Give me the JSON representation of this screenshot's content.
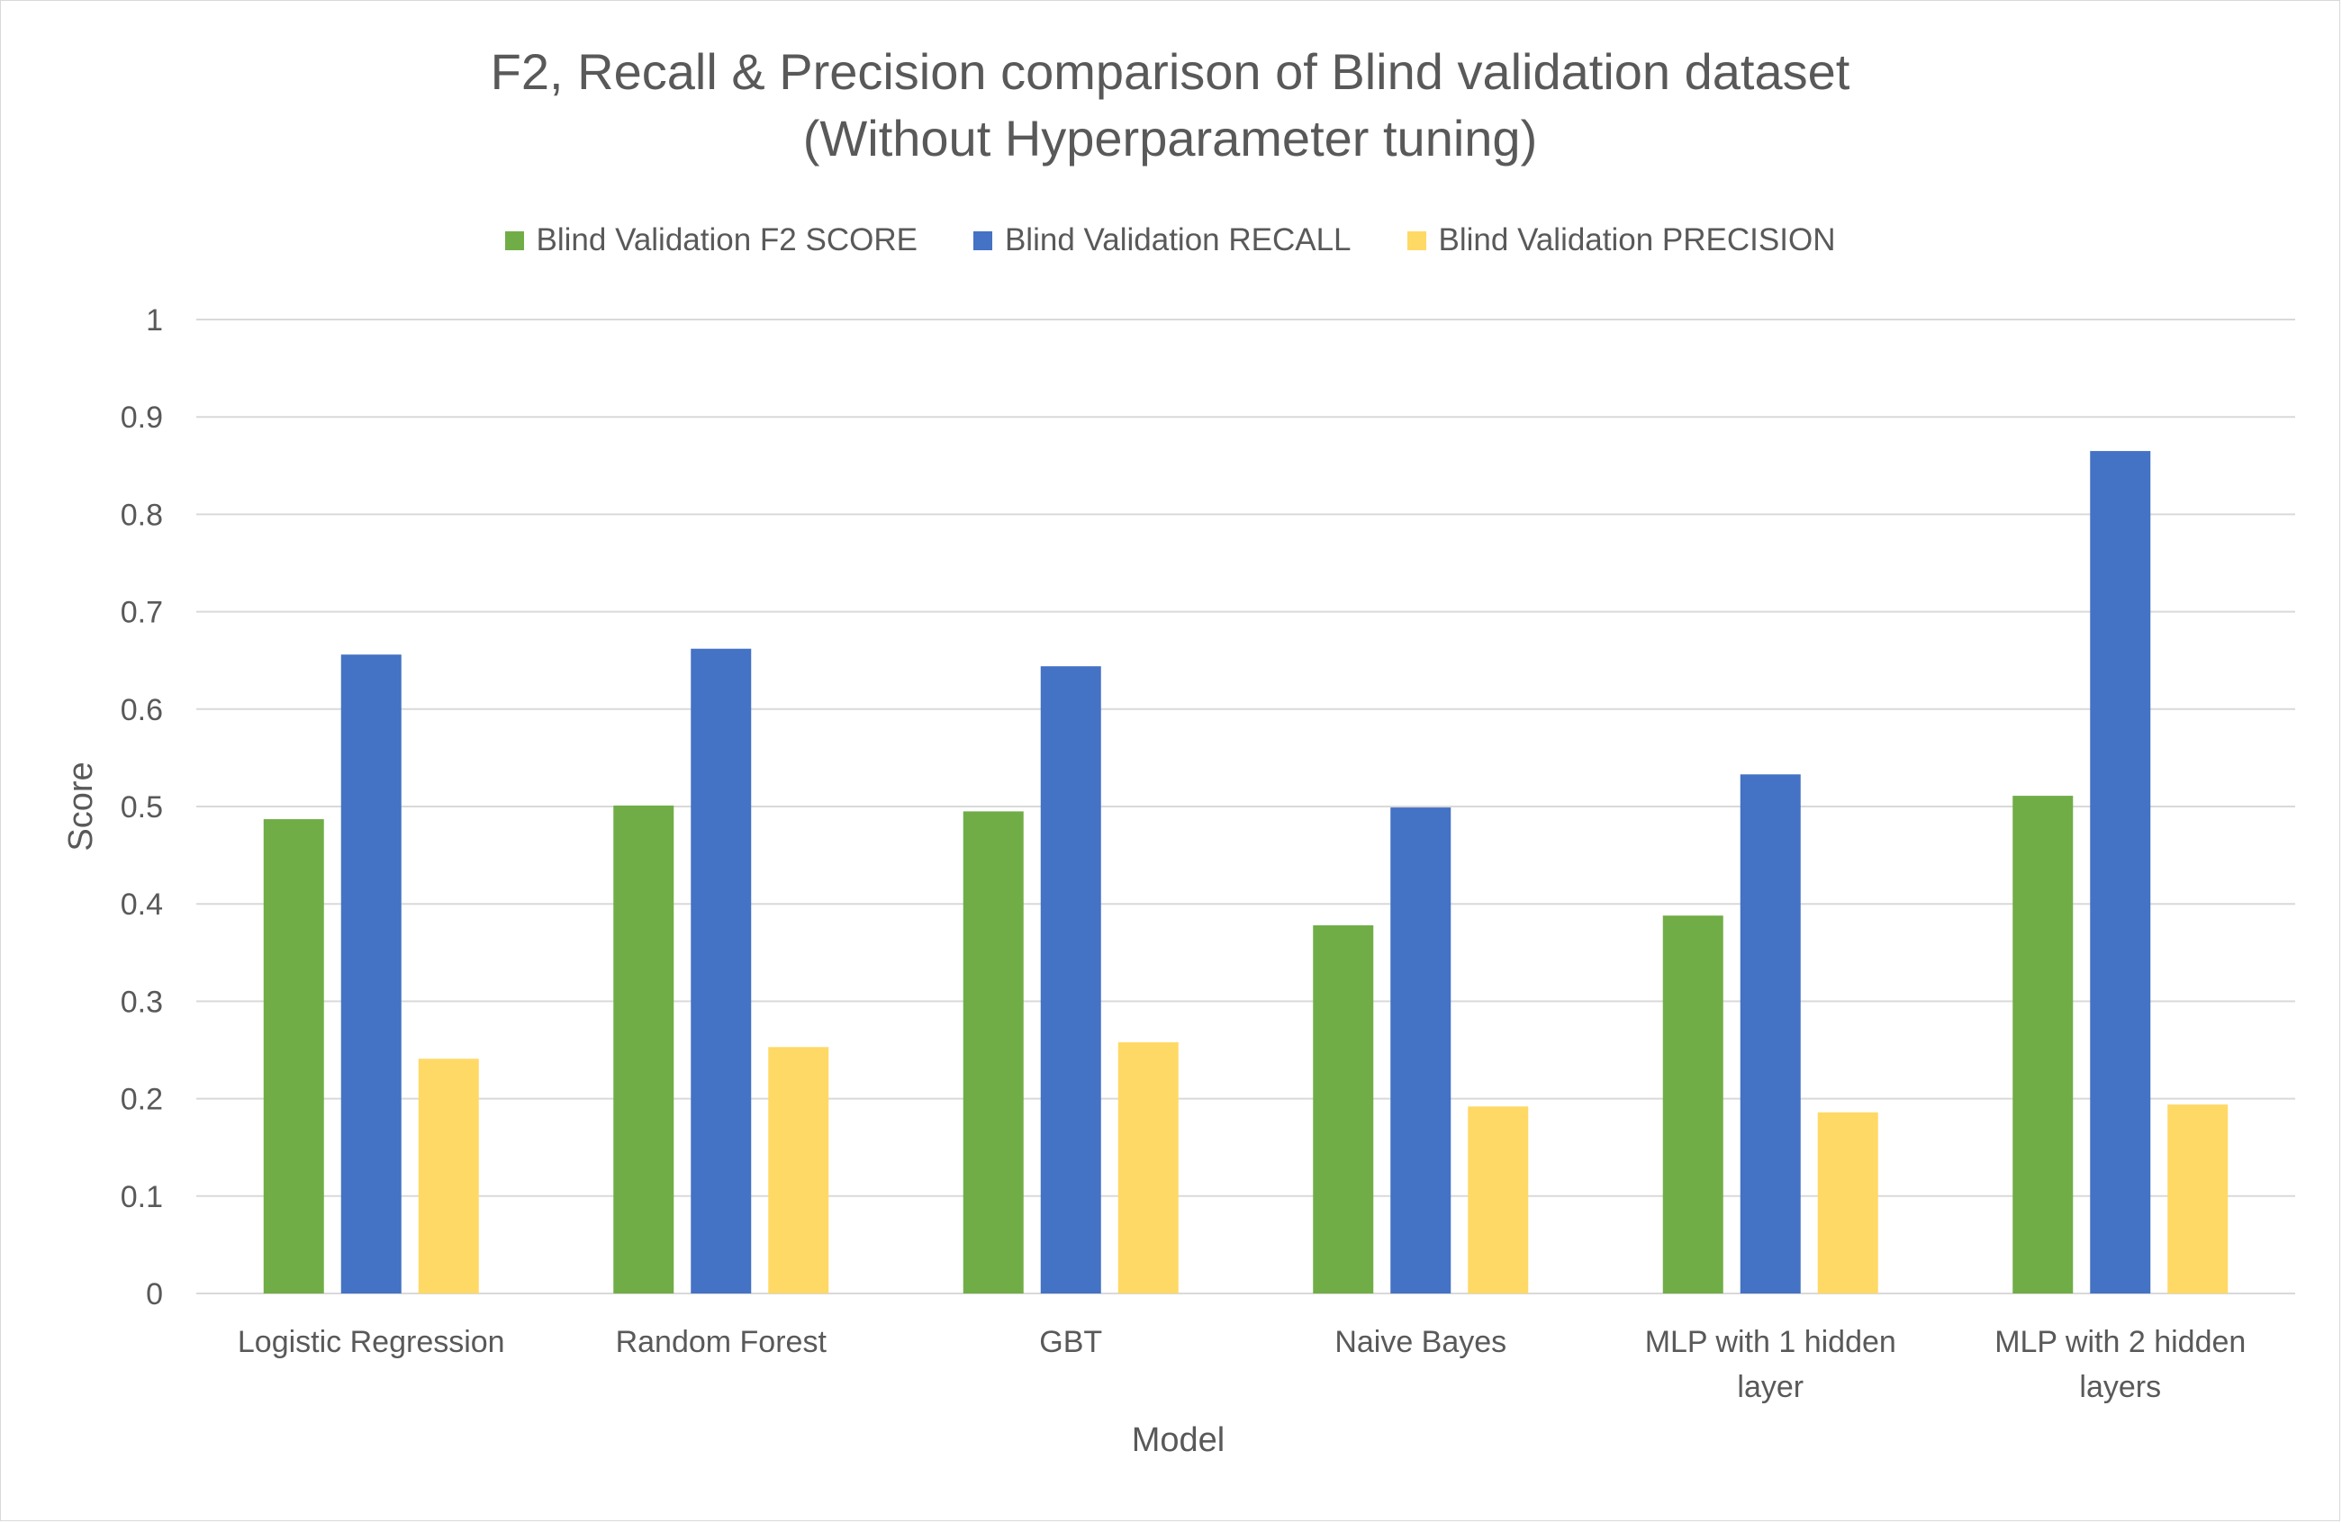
{
  "chart_data": {
    "type": "bar",
    "title_lines": [
      "F2, Recall & Precision comparison of Blind validation dataset",
      "(Without Hyperparameter tuning)"
    ],
    "xlabel": "Model",
    "ylabel": "Score",
    "ylim": [
      0,
      1
    ],
    "yticks": [
      "0",
      "0.1",
      "0.2",
      "0.3",
      "0.4",
      "0.5",
      "0.6",
      "0.7",
      "0.8",
      "0.9",
      "1"
    ],
    "grid": true,
    "legend_position": "top",
    "categories": [
      [
        "Logistic Regression"
      ],
      [
        "Random Forest"
      ],
      [
        "GBT"
      ],
      [
        "Naive Bayes"
      ],
      [
        "MLP with 1 hidden",
        "layer"
      ],
      [
        "MLP with 2 hidden",
        "layers"
      ]
    ],
    "series": [
      {
        "name": "Blind Validation F2 SCORE",
        "color": "#70ad47",
        "values": [
          0.487,
          0.501,
          0.495,
          0.378,
          0.388,
          0.511
        ]
      },
      {
        "name": "Blind Validation RECALL",
        "color": "#4472c4",
        "values": [
          0.656,
          0.662,
          0.644,
          0.499,
          0.533,
          0.865
        ]
      },
      {
        "name": "Blind Validation PRECISION",
        "color": "#ffd966",
        "values": [
          0.241,
          0.253,
          0.258,
          0.192,
          0.186,
          0.194
        ]
      }
    ]
  }
}
